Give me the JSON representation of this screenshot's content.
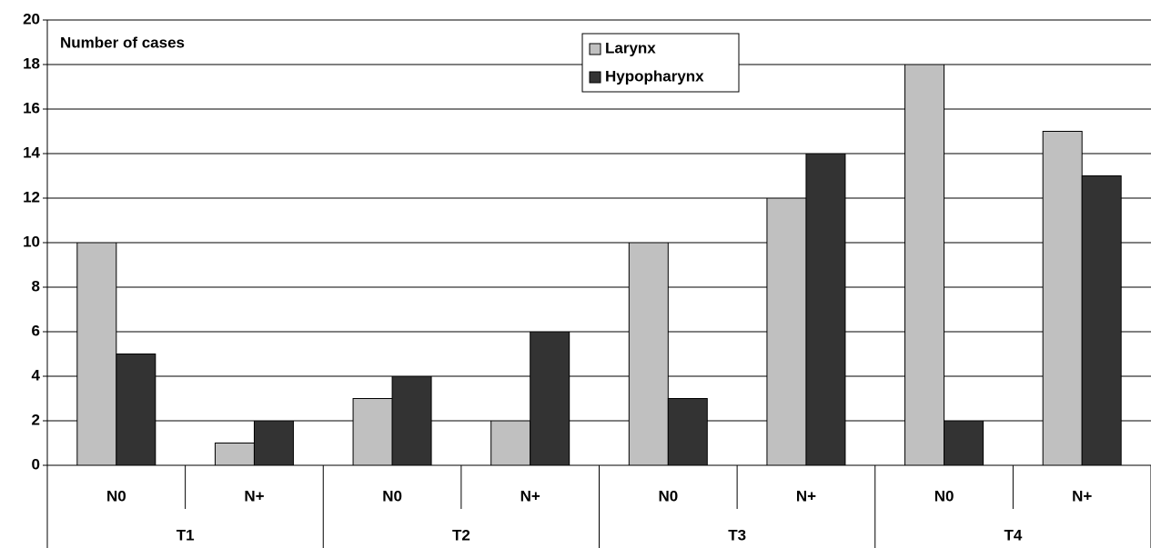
{
  "chart_data": {
    "type": "bar",
    "y_label": "Number of cases",
    "categories": [
      "N0",
      "N+",
      "N0",
      "N+",
      "N0",
      "N+",
      "N0",
      "N+"
    ],
    "groups": [
      "T1",
      "T2",
      "T3",
      "T4"
    ],
    "series": [
      {
        "name": "Larynx",
        "color": "#c0c0c0",
        "values": [
          10,
          1,
          3,
          2,
          10,
          12,
          18,
          15
        ]
      },
      {
        "name": "Hypopharynx",
        "color": "#333333",
        "values": [
          5,
          2,
          4,
          6,
          3,
          14,
          2,
          13
        ]
      }
    ],
    "ylim": [
      0,
      20
    ],
    "yticks": [
      0,
      2,
      4,
      6,
      8,
      10,
      12,
      14,
      16,
      18,
      20
    ],
    "grid": true
  }
}
